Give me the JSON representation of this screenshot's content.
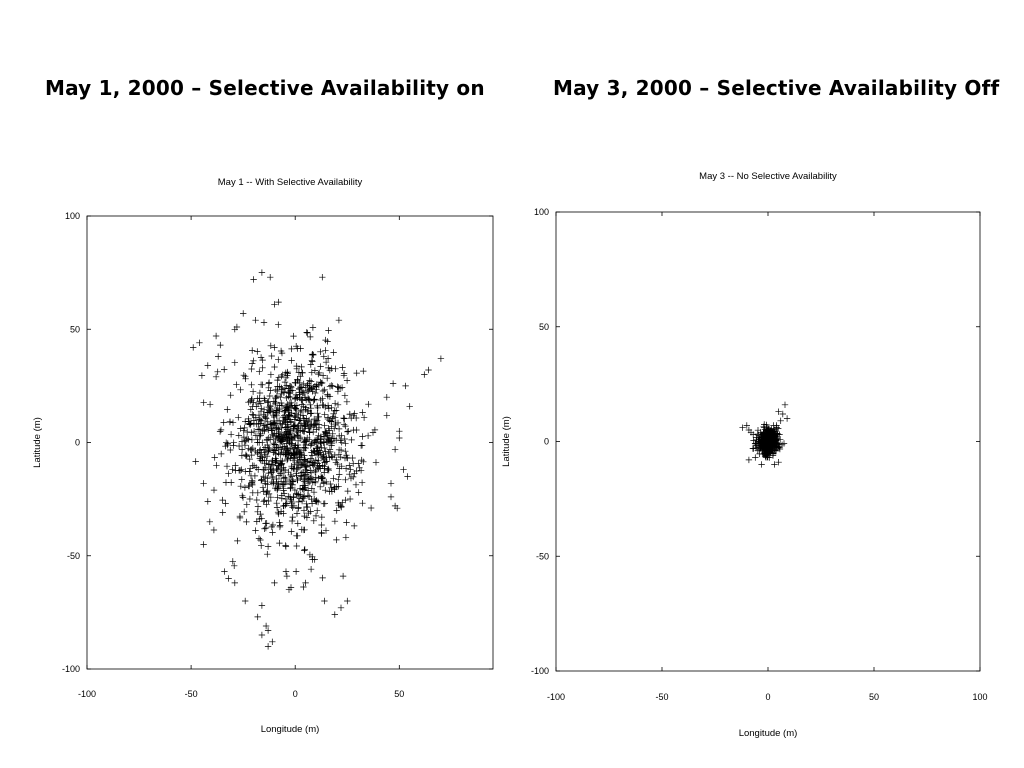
{
  "slide": {
    "left_heading": "May 1, 2000 – Selective Availability on",
    "right_heading": "May 3, 2000 – Selective Availability Off"
  },
  "chart_data": [
    {
      "type": "scatter",
      "title": "May 1 -- With Selective Availability",
      "xlabel": "Longitude  (m)",
      "ylabel": "Latitude  (m)",
      "xlim": [
        -100,
        95
      ],
      "ylim": [
        -100,
        100
      ],
      "xticks": [
        -100,
        -50,
        0,
        50
      ],
      "yticks": [
        100,
        50,
        0,
        -50,
        -100
      ],
      "marker": "+",
      "marker_color": "#000000",
      "grid": false,
      "cluster": {
        "center": [
          0,
          0
        ],
        "spread": [
          15,
          19
        ],
        "count": 1200
      },
      "outliers": [
        [
          -16,
          75
        ],
        [
          -12,
          73
        ],
        [
          13,
          73
        ],
        [
          -20,
          72
        ],
        [
          -8,
          62
        ],
        [
          -10,
          61
        ],
        [
          -25,
          57
        ],
        [
          -19,
          54
        ],
        [
          -15,
          53
        ],
        [
          21,
          54
        ],
        [
          -29,
          50
        ],
        [
          -28,
          51
        ],
        [
          -49,
          42
        ],
        [
          -46,
          44
        ],
        [
          -38,
          47
        ],
        [
          -36,
          43
        ],
        [
          -37,
          38
        ],
        [
          -42,
          34
        ],
        [
          -38,
          29
        ],
        [
          70,
          37
        ],
        [
          64,
          32
        ],
        [
          62,
          30
        ],
        [
          53,
          25
        ],
        [
          47,
          26
        ],
        [
          44,
          20
        ],
        [
          55,
          16
        ],
        [
          50,
          5
        ],
        [
          50,
          2
        ],
        [
          44,
          12
        ],
        [
          48,
          -3
        ],
        [
          52,
          -12
        ],
        [
          46,
          -18
        ],
        [
          54,
          -15
        ],
        [
          48,
          -28
        ],
        [
          49,
          -29
        ],
        [
          46,
          -24
        ],
        [
          -44,
          -45
        ],
        [
          -41,
          -35
        ],
        [
          -42,
          -26
        ],
        [
          -39,
          -21
        ],
        [
          -44,
          -18
        ],
        [
          -34,
          -57
        ],
        [
          -32,
          -60
        ],
        [
          -29,
          -62
        ],
        [
          -10,
          -62
        ],
        [
          5,
          -62
        ],
        [
          -3,
          -65
        ],
        [
          -2,
          -64
        ],
        [
          23,
          -59
        ],
        [
          -24,
          -70
        ],
        [
          -16,
          -72
        ],
        [
          -18,
          -77
        ],
        [
          -14,
          -81
        ],
        [
          -13,
          -83
        ],
        [
          -16,
          -85
        ],
        [
          -11,
          -88
        ],
        [
          -13,
          -90
        ],
        [
          25,
          -70
        ],
        [
          22,
          -73
        ],
        [
          19,
          -76
        ],
        [
          14,
          -70
        ],
        [
          -4,
          -59
        ]
      ]
    },
    {
      "type": "scatter",
      "title": "May 3 -- No Selective Availability",
      "xlabel": "Longitude  (m)",
      "ylabel": "Latitude  (m)",
      "xlim": [
        -100,
        100
      ],
      "ylim": [
        -100,
        100
      ],
      "xticks": [
        -100,
        -50,
        0,
        50,
        100
      ],
      "yticks": [
        100,
        50,
        0,
        -50,
        -100
      ],
      "marker": "+",
      "marker_color": "#000000",
      "grid": false,
      "cluster": {
        "center": [
          0,
          0
        ],
        "spread": [
          2.3,
          2.6
        ],
        "count": 500
      },
      "outliers": [
        [
          8,
          16
        ],
        [
          7,
          12
        ],
        [
          9,
          10
        ],
        [
          5,
          13
        ],
        [
          6,
          9
        ],
        [
          -12,
          6
        ],
        [
          -10,
          7
        ],
        [
          -9,
          5
        ],
        [
          -7,
          3
        ],
        [
          -8,
          4
        ],
        [
          -6,
          -7
        ],
        [
          -9,
          -8
        ],
        [
          -3,
          -10
        ],
        [
          5,
          -9
        ],
        [
          3,
          -10
        ],
        [
          4,
          7
        ]
      ]
    }
  ]
}
